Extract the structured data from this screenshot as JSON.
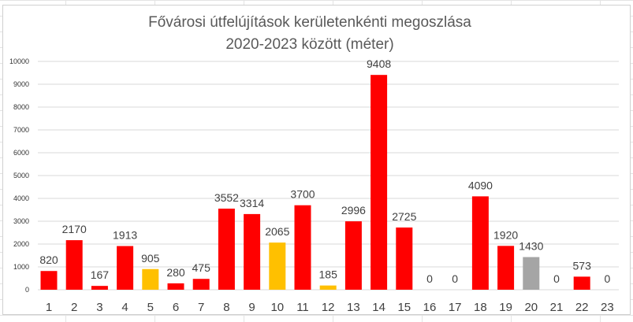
{
  "chart_data": {
    "type": "bar",
    "title": [
      "Fővárosi útfelújítások kerületenkénti megoszlása",
      "2020-2023 között (méter)"
    ],
    "xlabel": "",
    "ylabel": "",
    "ylim": [
      0,
      10000
    ],
    "yticks": [
      0,
      1000,
      2000,
      3000,
      4000,
      5000,
      6000,
      7000,
      8000,
      9000,
      10000
    ],
    "grid": true,
    "legend": "none",
    "categories": [
      "1",
      "2",
      "3",
      "4",
      "5",
      "6",
      "7",
      "8",
      "9",
      "10",
      "11",
      "12",
      "13",
      "14",
      "15",
      "16",
      "17",
      "18",
      "19",
      "20",
      "21",
      "22",
      "23"
    ],
    "values": [
      820,
      2170,
      167,
      1913,
      905,
      280,
      475,
      3552,
      3314,
      2065,
      3700,
      185,
      2996,
      9408,
      2725,
      0,
      0,
      4090,
      1920,
      1430,
      0,
      573,
      0
    ],
    "colors": [
      "#ff0000",
      "#ff0000",
      "#ff0000",
      "#ff0000",
      "#ffc000",
      "#ff0000",
      "#ff0000",
      "#ff0000",
      "#ff0000",
      "#ffc000",
      "#ff0000",
      "#ffc000",
      "#ff0000",
      "#ff0000",
      "#ff0000",
      "#ff0000",
      "#ff0000",
      "#ff0000",
      "#ff0000",
      "#a5a5a5",
      "#ff0000",
      "#ff0000",
      "#ff0000"
    ]
  }
}
